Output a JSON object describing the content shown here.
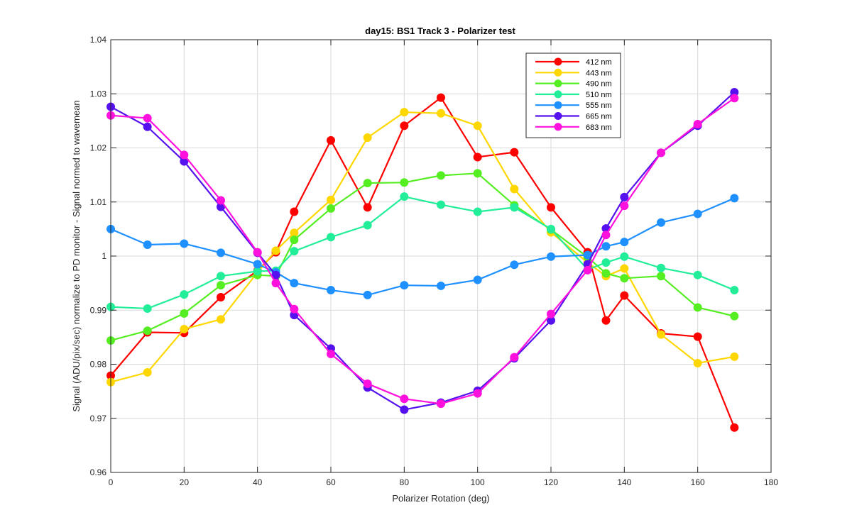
{
  "chart_data": {
    "type": "line",
    "title": "day15: BS1  Track 3 - Polarizer test",
    "xlabel": "Polarizer Rotation (deg)",
    "ylabel": "Signal (ADU/pix/sec) normalize to PD monitor - Signal normed to wavemean",
    "xlim": [
      0,
      180
    ],
    "ylim": [
      0.96,
      1.04
    ],
    "xticks": [
      0,
      20,
      40,
      60,
      80,
      100,
      120,
      140,
      160,
      180
    ],
    "yticks": [
      0.96,
      0.97,
      0.98,
      0.99,
      1,
      1.01,
      1.02,
      1.03,
      1.04
    ],
    "xtick_labels": [
      "0",
      "20",
      "40",
      "60",
      "80",
      "100",
      "120",
      "140",
      "160",
      "180"
    ],
    "ytick_labels": [
      "0.96",
      "0.97",
      "0.98",
      "0.99",
      "1",
      "1.01",
      "1.02",
      "1.03",
      "1.04"
    ],
    "grid": true,
    "legend_position": "top-right",
    "x": [
      0,
      10,
      20,
      30,
      40,
      45,
      50,
      60,
      70,
      80,
      90,
      100,
      110,
      120,
      130,
      135,
      140,
      150,
      160,
      170
    ],
    "series": [
      {
        "name": "412 nm",
        "color": "#ff0000",
        "values": [
          0.9779,
          0.9859,
          0.9858,
          0.9924,
          0.9973,
          1.0007,
          1.0082,
          1.0214,
          1.009,
          1.0241,
          1.0293,
          1.0183,
          1.0192,
          1.009,
          1.0007,
          0.9881,
          0.9927,
          0.9857,
          0.9851,
          0.9683
        ]
      },
      {
        "name": "443 nm",
        "color": "#ffd700",
        "values": [
          0.9767,
          0.9785,
          0.9865,
          0.9883,
          0.997,
          1.001,
          1.0043,
          1.0104,
          1.0219,
          1.0266,
          1.0264,
          1.0241,
          1.0124,
          1.0044,
          0.9988,
          0.9963,
          0.9977,
          0.9855,
          0.9802,
          0.9814
        ]
      },
      {
        "name": "490 nm",
        "color": "#55ee22",
        "values": [
          0.9844,
          0.9862,
          0.9894,
          0.9946,
          0.9965,
          0.9963,
          1.003,
          1.0088,
          1.0135,
          1.0136,
          1.0149,
          1.0153,
          1.0094,
          1.0049,
          0.9998,
          0.9968,
          0.9959,
          0.9963,
          0.9905,
          0.9889
        ]
      },
      {
        "name": "510 nm",
        "color": "#22ee99",
        "values": [
          0.9906,
          0.9903,
          0.9929,
          0.9963,
          0.9972,
          0.9973,
          1.0009,
          1.0035,
          1.0057,
          1.011,
          1.0095,
          1.0082,
          1.009,
          1.005,
          0.9975,
          0.9988,
          0.9999,
          0.9978,
          0.9965,
          0.9937
        ]
      },
      {
        "name": "555 nm",
        "color": "#1e90ff",
        "values": [
          1.005,
          1.0021,
          1.0023,
          1.0006,
          0.9985,
          0.997,
          0.995,
          0.9937,
          0.9928,
          0.9946,
          0.9945,
          0.9956,
          0.9984,
          0.9999,
          1.0002,
          1.0018,
          1.0026,
          1.0062,
          1.0078,
          1.0107
        ]
      },
      {
        "name": "665 nm",
        "color": "#5511ee",
        "values": [
          1.0276,
          1.0239,
          1.0175,
          1.0091,
          1.0006,
          0.9965,
          0.9891,
          0.9829,
          0.9757,
          0.9716,
          0.9729,
          0.9751,
          0.9811,
          0.9881,
          0.9985,
          1.0051,
          1.0109,
          1.0191,
          1.0241,
          1.0303
        ]
      },
      {
        "name": "683 nm",
        "color": "#ff11dd",
        "values": [
          1.026,
          1.0255,
          1.0187,
          1.0103,
          1.0007,
          0.995,
          0.9902,
          0.9819,
          0.9764,
          0.9736,
          0.9727,
          0.9746,
          0.9813,
          0.9893,
          0.9974,
          1.0039,
          1.0093,
          1.0191,
          1.0244,
          1.0292
        ]
      }
    ]
  }
}
